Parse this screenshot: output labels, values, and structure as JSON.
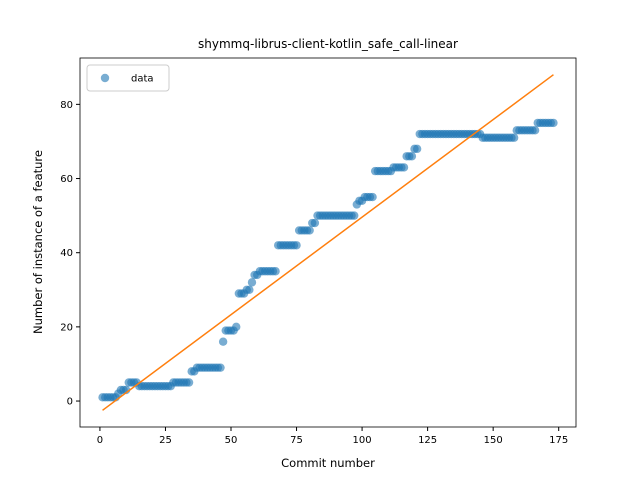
{
  "chart_data": {
    "type": "scatter",
    "title": "shymmq-librus-client-kotlin_safe_call-linear",
    "x_label": "Commit number",
    "y_label": "Number of instance of a feature",
    "legend": "upper left",
    "xlim": [
      -7.6,
      181.6
    ],
    "ylim": [
      -7,
      92.5
    ],
    "xticks": [
      0,
      25,
      50,
      75,
      100,
      125,
      150,
      175
    ],
    "yticks": [
      0,
      20,
      40,
      60,
      80
    ],
    "series": [
      {
        "name": "data",
        "color": "#1f77b4",
        "style": "points",
        "x": [
          1,
          2,
          3,
          4,
          5,
          6,
          7,
          8,
          9,
          10,
          11,
          12,
          13,
          14,
          15,
          16,
          17,
          18,
          19,
          20,
          21,
          22,
          23,
          24,
          25,
          26,
          27,
          28,
          29,
          30,
          31,
          32,
          33,
          34,
          35,
          36,
          37,
          38,
          39,
          40,
          41,
          42,
          43,
          44,
          45,
          46,
          47,
          48,
          49,
          50,
          51,
          52,
          53,
          54,
          55,
          56,
          57,
          58,
          59,
          60,
          61,
          62,
          63,
          64,
          65,
          66,
          67,
          68,
          69,
          70,
          71,
          72,
          73,
          74,
          75,
          76,
          77,
          78,
          79,
          80,
          81,
          82,
          83,
          84,
          85,
          86,
          87,
          88,
          89,
          90,
          91,
          92,
          93,
          94,
          95,
          96,
          97,
          98,
          99,
          100,
          101,
          102,
          103,
          104,
          105,
          106,
          107,
          108,
          109,
          110,
          111,
          112,
          113,
          114,
          115,
          116,
          117,
          118,
          119,
          120,
          121,
          122,
          123,
          124,
          125,
          126,
          127,
          128,
          129,
          130,
          131,
          132,
          133,
          134,
          135,
          136,
          137,
          138,
          139,
          140,
          141,
          142,
          143,
          144,
          145,
          146,
          147,
          148,
          149,
          150,
          151,
          152,
          153,
          154,
          155,
          156,
          157,
          158,
          159,
          160,
          161,
          162,
          163,
          164,
          165,
          166,
          167,
          168,
          169,
          170,
          171,
          172,
          173
        ],
        "values": [
          1,
          1,
          1,
          1,
          1,
          1,
          2,
          3,
          3,
          3,
          5,
          5,
          5,
          5,
          4,
          4,
          4,
          4,
          4,
          4,
          4,
          4,
          4,
          4,
          4,
          4,
          4,
          5,
          5,
          5,
          5,
          5,
          5,
          5,
          8,
          8,
          9,
          9,
          9,
          9,
          9,
          9,
          9,
          9,
          9,
          9,
          16,
          19,
          19,
          19,
          19,
          20,
          29,
          29,
          29,
          30,
          30,
          32,
          34,
          34,
          35,
          35,
          35,
          35,
          35,
          35,
          35,
          42,
          42,
          42,
          42,
          42,
          42,
          42,
          42,
          46,
          46,
          46,
          46,
          46,
          48,
          48,
          50,
          50,
          50,
          50,
          50,
          50,
          50,
          50,
          50,
          50,
          50,
          50,
          50,
          50,
          50,
          53,
          54,
          54,
          55,
          55,
          55,
          55,
          62,
          62,
          62,
          62,
          62,
          62,
          62,
          63,
          63,
          63,
          63,
          63,
          66,
          66,
          66,
          68,
          68,
          72,
          72,
          72,
          72,
          72,
          72,
          72,
          72,
          72,
          72,
          72,
          72,
          72,
          72,
          72,
          72,
          72,
          72,
          72,
          72,
          72,
          72,
          72,
          72,
          71,
          71,
          71,
          71,
          71,
          71,
          71,
          71,
          71,
          71,
          71,
          71,
          71,
          73,
          73,
          73,
          73,
          73,
          73,
          73,
          73,
          75,
          75,
          75,
          75,
          75,
          75,
          75
        ]
      },
      {
        "color": "#ff7f0e",
        "style": "line",
        "x": [
          1,
          173
        ],
        "values": [
          -2.5,
          88
        ]
      }
    ]
  }
}
